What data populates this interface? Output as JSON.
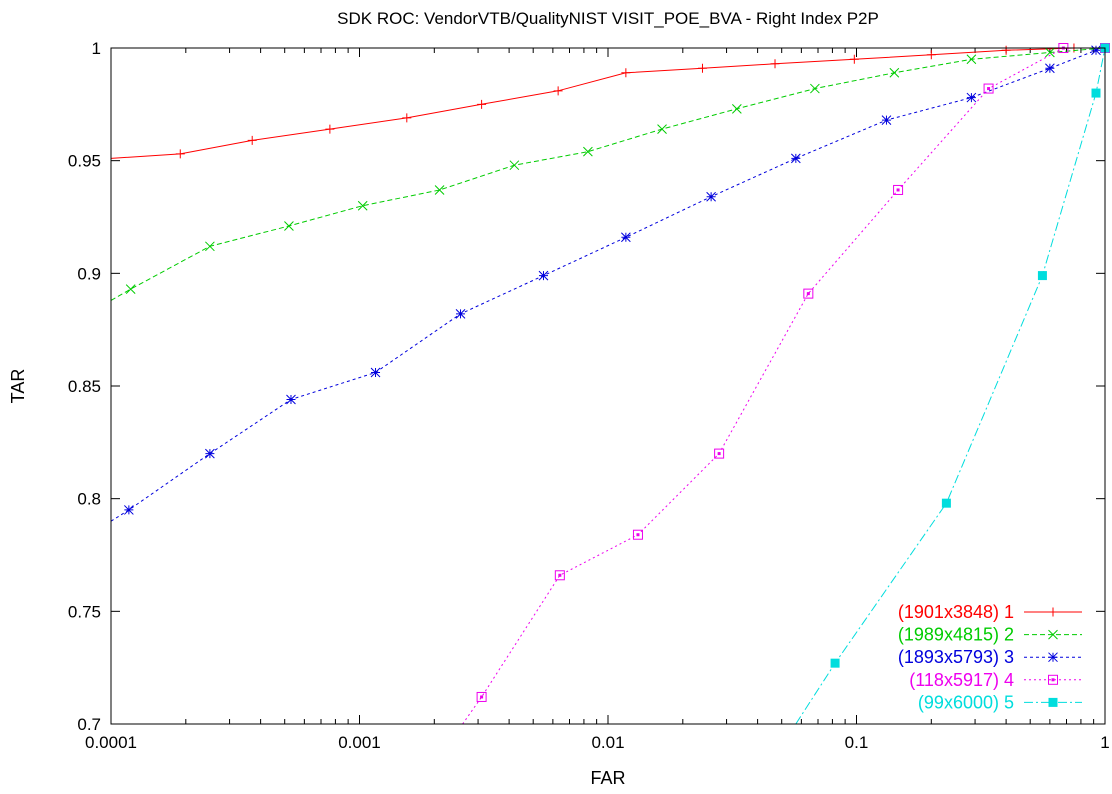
{
  "chart_data": {
    "type": "line",
    "title": "SDK ROC: VendorVTB/QualityNIST VISIT_POE_BVA - Right Index P2P",
    "xlabel": "FAR",
    "ylabel": "TAR",
    "xscale": "log",
    "xlim": [
      0.0001,
      1
    ],
    "ylim": [
      0.7,
      1
    ],
    "x_ticks": [
      {
        "value": 0.0001,
        "label": "0.0001"
      },
      {
        "value": 0.001,
        "label": "0.001"
      },
      {
        "value": 0.01,
        "label": "0.01"
      },
      {
        "value": 0.1,
        "label": "0.1"
      },
      {
        "value": 1,
        "label": "1"
      }
    ],
    "y_ticks": [
      {
        "value": 0.7,
        "label": "0.7"
      },
      {
        "value": 0.75,
        "label": "0.75"
      },
      {
        "value": 0.8,
        "label": "0.8"
      },
      {
        "value": 0.85,
        "label": "0.85"
      },
      {
        "value": 0.9,
        "label": "0.9"
      },
      {
        "value": 0.95,
        "label": "0.95"
      },
      {
        "value": 1,
        "label": "1"
      }
    ],
    "grid": false,
    "legend_position": "bottom-right",
    "series": [
      {
        "name": "(1901x3848) 1",
        "color": "#ff0000",
        "marker": "plus",
        "dash": "",
        "x": [
          0.0001,
          0.00019,
          0.00037,
          0.00076,
          0.00155,
          0.0031,
          0.0063,
          0.0118,
          0.024,
          0.047,
          0.098,
          0.2,
          0.4,
          0.75,
          1
        ],
        "y": [
          0.951,
          0.953,
          0.959,
          0.964,
          0.969,
          0.975,
          0.981,
          0.989,
          0.991,
          0.993,
          0.995,
          0.997,
          0.999,
          1.0,
          1.0
        ]
      },
      {
        "name": "(1989x4815) 2",
        "color": "#00cc00",
        "marker": "x",
        "dash": "5,3",
        "x": [
          0.0001,
          0.00012,
          0.00025,
          0.00052,
          0.00103,
          0.0021,
          0.0042,
          0.0083,
          0.0165,
          0.033,
          0.068,
          0.142,
          0.29,
          0.6,
          1
        ],
        "y": [
          0.888,
          0.893,
          0.912,
          0.921,
          0.93,
          0.937,
          0.948,
          0.954,
          0.964,
          0.973,
          0.982,
          0.989,
          0.995,
          0.998,
          1.0
        ]
      },
      {
        "name": "(1893x5793) 3",
        "color": "#0000dd",
        "marker": "asterisk",
        "dash": "3,3",
        "x": [
          0.0001,
          0.000118,
          0.00025,
          0.00053,
          0.00116,
          0.00255,
          0.0055,
          0.0118,
          0.026,
          0.057,
          0.132,
          0.29,
          0.6,
          0.92,
          1
        ],
        "y": [
          0.79,
          0.795,
          0.82,
          0.844,
          0.856,
          0.882,
          0.899,
          0.916,
          0.934,
          0.951,
          0.968,
          0.978,
          0.991,
          0.999,
          1.0
        ]
      },
      {
        "name": "(118x5917) 4",
        "color": "#ee00ee",
        "marker": "square-open",
        "dash": "2,3",
        "x": [
          0.0026,
          0.0031,
          0.0064,
          0.0132,
          0.028,
          0.064,
          0.147,
          0.34,
          0.68,
          1
        ],
        "y": [
          0.7,
          0.712,
          0.766,
          0.784,
          0.82,
          0.891,
          0.937,
          0.982,
          1.0,
          1.0
        ]
      },
      {
        "name": "(99x6000) 5",
        "color": "#00dddd",
        "marker": "square-filled",
        "dash": "9,3,2,3",
        "x": [
          0.057,
          0.082,
          0.23,
          0.56,
          0.92,
          1
        ],
        "y": [
          0.7,
          0.727,
          0.798,
          0.899,
          0.98,
          1.0
        ]
      }
    ]
  }
}
